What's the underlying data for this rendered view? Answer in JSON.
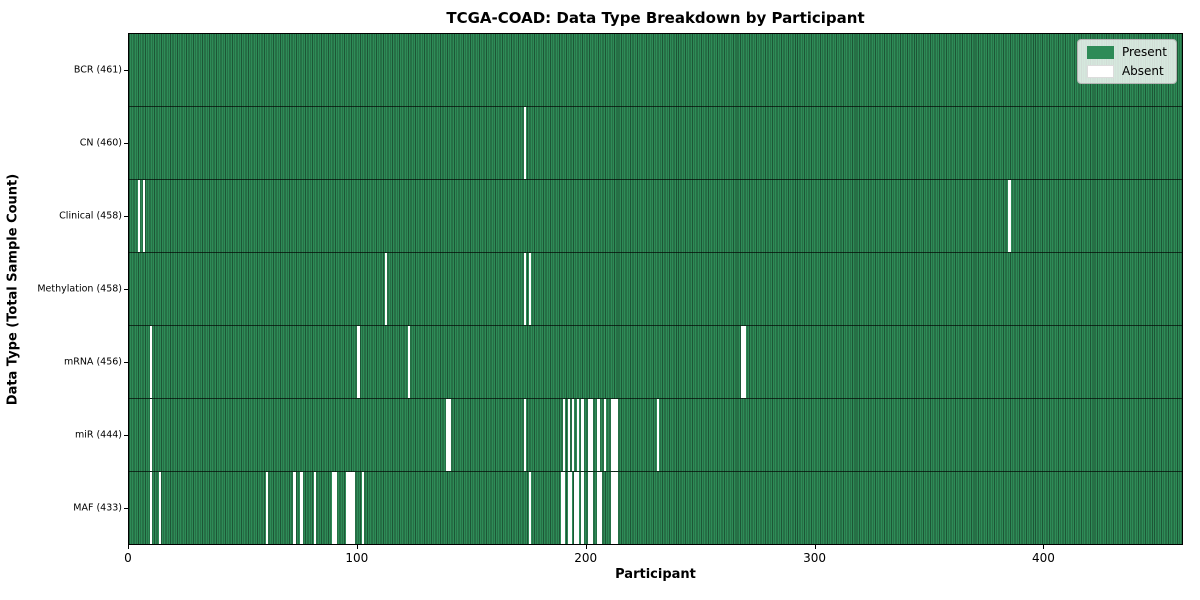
{
  "title": "TCGA-COAD: Data Type Breakdown by Participant",
  "colors": {
    "present": "#2e8b57",
    "absent": "#ffffff",
    "cell_edge": "#1d5636",
    "axis": "#000000"
  },
  "legend": {
    "present_label": "Present",
    "absent_label": "Absent"
  },
  "chart_data": {
    "type": "heatmap",
    "title": "TCGA-COAD: Data Type Breakdown by Participant",
    "xlabel": "Participant",
    "ylabel": "Data Type (Total Sample Count)",
    "participants_total": 461,
    "xlim": [
      0,
      461
    ],
    "x_ticks": [
      0,
      100,
      200,
      300,
      400
    ],
    "grid": false,
    "legend_position": "upper right",
    "legend": [
      {
        "label": "Present",
        "color": "#2e8b57"
      },
      {
        "label": "Absent",
        "color": "#ffffff"
      }
    ],
    "rows": [
      {
        "data_type": "BCR",
        "label": "BCR (461)",
        "present_count": 461,
        "absent_count": 0,
        "absent_participants": []
      },
      {
        "data_type": "CN",
        "label": "CN (460)",
        "present_count": 460,
        "absent_count": 1,
        "absent_participants": [
          173
        ]
      },
      {
        "data_type": "Clinical",
        "label": "Clinical (458)",
        "present_count": 458,
        "absent_count": 3,
        "absent_participants": [
          4,
          6,
          385
        ]
      },
      {
        "data_type": "Methylation",
        "label": "Methylation (458)",
        "present_count": 458,
        "absent_count": 3,
        "absent_participants": [
          112,
          173,
          175
        ]
      },
      {
        "data_type": "mRNA",
        "label": "mRNA (456)",
        "present_count": 456,
        "absent_count": 5,
        "absent_participants": [
          9,
          100,
          122,
          268,
          269
        ]
      },
      {
        "data_type": "miR",
        "label": "miR (444)",
        "present_count": 444,
        "absent_count": 17,
        "absent_participants": [
          9,
          139,
          140,
          173,
          190,
          192,
          194,
          196,
          198,
          201,
          202,
          205,
          208,
          211,
          212,
          213,
          231
        ]
      },
      {
        "data_type": "MAF",
        "label": "MAF (433)",
        "present_count": 433,
        "absent_count": 28,
        "absent_participants": [
          9,
          13,
          60,
          72,
          75,
          81,
          89,
          90,
          95,
          96,
          97,
          98,
          102,
          175,
          189,
          190,
          192,
          193,
          195,
          196,
          198,
          201,
          202,
          205,
          206,
          211,
          212,
          213
        ]
      }
    ]
  }
}
